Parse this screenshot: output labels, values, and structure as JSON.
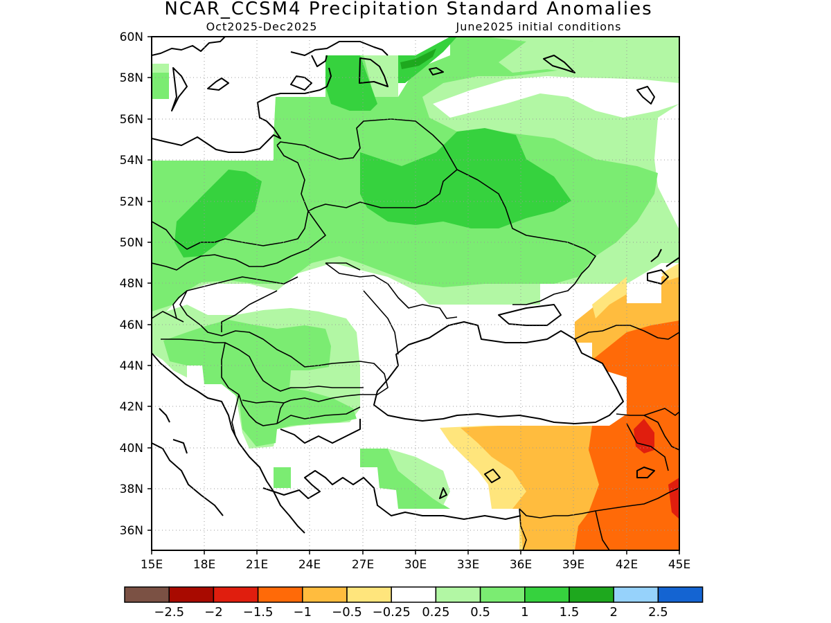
{
  "title": "NCAR_CCSM4 Precipitation Standard Anomalies",
  "subtitle_left": "Oct2025-Dec2025",
  "subtitle_right": "June2025 initial conditions",
  "map": {
    "lon_range": [
      15,
      45
    ],
    "lat_range": [
      35,
      60
    ],
    "x_tick_labels": [
      "15E",
      "18E",
      "21E",
      "24E",
      "27E",
      "30E",
      "33E",
      "36E",
      "39E",
      "42E",
      "45E"
    ],
    "y_tick_labels": [
      "36N",
      "38N",
      "40N",
      "42N",
      "44N",
      "46N",
      "48N",
      "50N",
      "52N",
      "54N",
      "56N",
      "58N",
      "60N"
    ],
    "grid": "dotted",
    "region": "Eastern Europe, Black Sea, Anatolia"
  },
  "colorbar": {
    "colors": [
      "#7b5144",
      "#a80a00",
      "#e01e0e",
      "#ff6a08",
      "#ffbc3e",
      "#ffe57c",
      "#ffffff",
      "#b2f7a4",
      "#7bec72",
      "#36d23e",
      "#1ea81e",
      "#96d2fb",
      "#1464d2"
    ],
    "tick_labels": [
      "-2.5",
      "-2",
      "-1.5",
      "-1",
      "-0.5",
      "-0.25",
      "0.25",
      "0.5",
      "1",
      "1.5",
      "2",
      "2.5"
    ]
  }
}
